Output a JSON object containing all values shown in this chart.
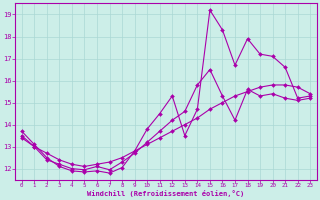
{
  "title": "",
  "xlabel": "Windchill (Refroidissement éolien,°C)",
  "ylabel": "",
  "background_color": "#cceee8",
  "line_color": "#aa00aa",
  "xlim": [
    -0.5,
    23.5
  ],
  "ylim": [
    11.5,
    19.5
  ],
  "yticks": [
    12,
    13,
    14,
    15,
    16,
    17,
    18,
    19
  ],
  "xticks": [
    0,
    1,
    2,
    3,
    4,
    5,
    6,
    7,
    8,
    9,
    10,
    11,
    12,
    13,
    14,
    15,
    16,
    17,
    18,
    19,
    20,
    21,
    22,
    23
  ],
  "series1_x": [
    0,
    1,
    2,
    3,
    4,
    5,
    6,
    7,
    8,
    9,
    10,
    11,
    12,
    13,
    14,
    15,
    16,
    17,
    18,
    19,
    20,
    21,
    22,
    23
  ],
  "series1_y": [
    13.7,
    13.1,
    12.5,
    12.1,
    11.9,
    11.85,
    11.9,
    11.8,
    12.05,
    12.8,
    13.8,
    14.5,
    15.3,
    13.5,
    14.7,
    19.2,
    18.3,
    16.7,
    17.9,
    17.2,
    17.1,
    16.6,
    15.2,
    15.3
  ],
  "series2_x": [
    0,
    1,
    2,
    3,
    4,
    5,
    6,
    7,
    8,
    9,
    10,
    11,
    12,
    13,
    14,
    15,
    16,
    17,
    18,
    19,
    20,
    21,
    22,
    23
  ],
  "series2_y": [
    13.5,
    13.0,
    12.4,
    12.2,
    12.0,
    11.95,
    12.1,
    11.95,
    12.3,
    12.7,
    13.2,
    13.7,
    14.2,
    14.6,
    15.8,
    16.5,
    15.3,
    14.2,
    15.6,
    15.3,
    15.4,
    15.2,
    15.1,
    15.2
  ],
  "series3_x": [
    0,
    1,
    2,
    3,
    4,
    5,
    6,
    7,
    8,
    9,
    10,
    11,
    12,
    13,
    14,
    15,
    16,
    17,
    18,
    19,
    20,
    21,
    22,
    23
  ],
  "series3_y": [
    13.4,
    13.0,
    12.7,
    12.4,
    12.2,
    12.1,
    12.2,
    12.3,
    12.5,
    12.8,
    13.1,
    13.4,
    13.7,
    14.0,
    14.3,
    14.7,
    15.0,
    15.3,
    15.5,
    15.7,
    15.8,
    15.8,
    15.7,
    15.4
  ]
}
